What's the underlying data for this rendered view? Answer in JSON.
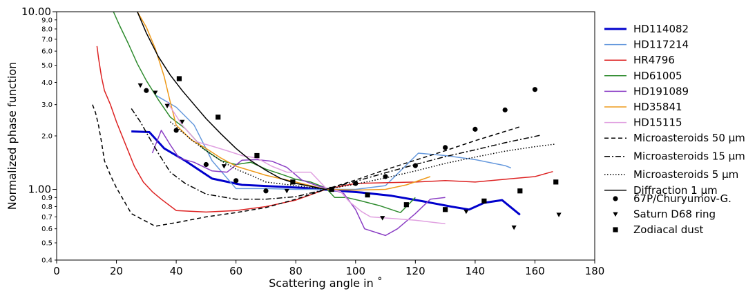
{
  "chart_data": {
    "type": "line",
    "title": "",
    "xlabel": "Scattering angle in  ˚",
    "ylabel": "Normalized phase function",
    "xlim": [
      0,
      180
    ],
    "ylim": [
      0.4,
      10.0
    ],
    "yscale": "log",
    "grid": false,
    "legend_position": "right, outside plot",
    "x_ticks": [
      "0",
      "20",
      "40",
      "60",
      "80",
      "100",
      "120",
      "140",
      "160",
      "180"
    ],
    "y_major_ticks": [
      "1.00",
      "10.00"
    ],
    "y_minor_ticks": [
      "0.4",
      "0.5",
      "0.6",
      "0.7",
      "0.8",
      "0.9",
      "2.0",
      "3.0",
      "4.0",
      "5.0",
      "6.0",
      "7.0",
      "8.0",
      "9.0"
    ],
    "series": [
      {
        "name": "HD114082",
        "color": "#0000cc",
        "style": "solid-thick",
        "x": [
          25,
          31,
          36,
          43,
          52,
          62,
          72,
          82,
          92,
          102,
          112,
          122,
          132,
          138,
          143,
          149,
          155
        ],
        "y": [
          2.12,
          2.1,
          1.7,
          1.45,
          1.15,
          1.06,
          1.04,
          1.02,
          0.99,
          0.96,
          0.92,
          0.86,
          0.8,
          0.77,
          0.84,
          0.87,
          0.72
        ]
      },
      {
        "name": "HD117214",
        "color": "#6699dd",
        "style": "solid",
        "x": [
          33,
          40,
          46,
          52,
          60,
          70,
          80,
          90,
          100,
          110,
          121,
          130,
          140,
          150,
          152
        ],
        "y": [
          3.4,
          2.9,
          2.3,
          1.45,
          1.01,
          1.01,
          1.0,
          1.0,
          1.0,
          1.05,
          1.6,
          1.55,
          1.47,
          1.36,
          1.32
        ]
      },
      {
        "name": "HR4796",
        "color": "#dd2222",
        "style": "solid",
        "x": [
          13.5,
          14,
          15,
          16,
          18,
          20,
          23,
          26,
          29,
          32,
          35,
          40,
          50,
          60,
          70,
          80,
          90,
          100,
          110,
          120,
          130,
          140,
          150,
          160,
          166
        ],
        "y": [
          6.4,
          5.5,
          4.3,
          3.6,
          3.0,
          2.4,
          1.8,
          1.35,
          1.1,
          0.97,
          0.88,
          0.76,
          0.745,
          0.76,
          0.8,
          0.87,
          1.0,
          1.08,
          1.09,
          1.1,
          1.12,
          1.1,
          1.14,
          1.18,
          1.26
        ]
      },
      {
        "name": "HD61005",
        "color": "#2e8b2e",
        "style": "solid",
        "x": [
          19,
          21,
          24,
          27,
          30,
          34,
          38,
          43,
          49,
          55,
          60,
          65,
          70,
          75,
          80,
          85,
          90,
          93,
          97,
          102,
          108,
          115,
          120
        ],
        "y": [
          10.0,
          8.4,
          6.6,
          5.1,
          4.1,
          3.2,
          2.55,
          2.2,
          1.7,
          1.45,
          1.38,
          1.42,
          1.3,
          1.22,
          1.14,
          1.1,
          1.02,
          0.9,
          0.9,
          0.86,
          0.81,
          0.74,
          0.9
        ]
      },
      {
        "name": "HD191089",
        "color": "#8a3dc4",
        "style": "solid",
        "x": [
          32,
          35,
          38,
          41,
          46,
          52,
          57,
          62,
          67,
          72,
          77,
          82,
          87,
          92,
          96,
          100,
          103,
          110,
          114,
          120,
          125,
          130
        ],
        "y": [
          1.6,
          2.15,
          1.78,
          1.5,
          1.42,
          1.27,
          1.25,
          1.46,
          1.47,
          1.44,
          1.33,
          1.13,
          1.05,
          1.0,
          0.95,
          0.77,
          0.6,
          0.55,
          0.6,
          0.73,
          0.88,
          0.9
        ]
      },
      {
        "name": "HD35841",
        "color": "#ee9a1a",
        "style": "solid",
        "x": [
          27,
          30,
          33,
          36,
          38,
          40,
          45,
          50,
          55,
          60,
          70,
          80,
          90,
          100,
          110,
          117,
          125
        ],
        "y": [
          10.0,
          8.2,
          6.2,
          4.3,
          3.1,
          2.3,
          1.9,
          1.7,
          1.5,
          1.35,
          1.2,
          1.1,
          1.0,
          0.99,
          1.0,
          1.06,
          1.18
        ]
      },
      {
        "name": "HD15115",
        "color": "#e0a0e0",
        "style": "solid",
        "x": [
          37,
          42,
          47,
          52,
          57,
          62,
          67,
          72,
          77,
          82,
          85,
          90,
          95,
          98,
          102,
          105,
          110,
          120,
          130
        ],
        "y": [
          3.1,
          2.3,
          1.85,
          1.75,
          1.65,
          1.55,
          1.5,
          1.35,
          1.25,
          1.25,
          1.25,
          1.02,
          0.97,
          0.85,
          0.75,
          0.7,
          0.69,
          0.67,
          0.64
        ]
      },
      {
        "name": "Microasteroids 50 μm",
        "color": "#000000",
        "style": "dashed",
        "x": [
          12,
          13,
          14,
          15,
          16,
          18,
          20,
          25,
          33,
          40,
          50,
          60,
          70,
          80,
          90,
          100,
          110,
          120,
          130,
          140,
          150,
          155
        ],
        "y": [
          3.0,
          2.7,
          2.3,
          1.85,
          1.45,
          1.2,
          1.02,
          0.73,
          0.62,
          0.65,
          0.7,
          0.74,
          0.79,
          0.88,
          1.0,
          1.13,
          1.29,
          1.46,
          1.65,
          1.88,
          2.12,
          2.25
        ]
      },
      {
        "name": "Microasteroids 15 μm",
        "color": "#000000",
        "style": "dashdot",
        "x": [
          25,
          28,
          31,
          34,
          38,
          43,
          50,
          55,
          60,
          70,
          80,
          90,
          100,
          110,
          120,
          130,
          140,
          150,
          162
        ],
        "y": [
          2.85,
          2.4,
          1.95,
          1.6,
          1.25,
          1.08,
          0.94,
          0.91,
          0.88,
          0.88,
          0.91,
          1.0,
          1.11,
          1.24,
          1.38,
          1.53,
          1.67,
          1.83,
          2.02
        ]
      },
      {
        "name": "Microasteroids 5 μm",
        "color": "#000000",
        "style": "dotted",
        "x": [
          38,
          42,
          46,
          50,
          55,
          60,
          65,
          70,
          80,
          90,
          100,
          110,
          120,
          130,
          140,
          150,
          160,
          167
        ],
        "y": [
          2.4,
          2.1,
          1.85,
          1.65,
          1.45,
          1.3,
          1.2,
          1.1,
          1.05,
          1.0,
          1.07,
          1.16,
          1.27,
          1.4,
          1.52,
          1.64,
          1.74,
          1.8
        ]
      },
      {
        "name": "Diffraction 1 μm",
        "color": "#000000",
        "style": "solid",
        "x": [
          27,
          30,
          34,
          38,
          42,
          46,
          50,
          55,
          60,
          65,
          70,
          75,
          80,
          85,
          90
        ],
        "y": [
          10.0,
          7.6,
          5.6,
          4.4,
          3.6,
          3.0,
          2.5,
          2.05,
          1.7,
          1.45,
          1.28,
          1.15,
          1.08,
          1.04,
          1.0
        ]
      }
    ],
    "scatter_series": [
      {
        "name": "67P/Churyumov-G.",
        "marker": "circle",
        "color": "#000000",
        "x": [
          30,
          40,
          50,
          60,
          70,
          92,
          100,
          110,
          120,
          130,
          140,
          150,
          160
        ],
        "y": [
          3.6,
          2.15,
          1.38,
          1.12,
          0.98,
          1.0,
          1.08,
          1.18,
          1.36,
          1.72,
          2.18,
          2.8,
          3.65
        ]
      },
      {
        "name": "Saturn D68 ring",
        "marker": "triangle-down",
        "color": "#000000",
        "x": [
          28,
          33,
          37,
          42,
          56,
          77,
          109,
          137,
          153,
          168
        ],
        "y": [
          3.85,
          3.5,
          2.95,
          2.4,
          1.35,
          0.98,
          0.69,
          0.75,
          0.61,
          0.72
        ]
      },
      {
        "name": "Zodiacal dust",
        "marker": "square",
        "color": "#000000",
        "x": [
          41,
          54,
          67,
          79,
          92,
          104,
          117,
          130,
          143,
          155,
          167
        ],
        "y": [
          4.2,
          2.55,
          1.55,
          1.1,
          1.0,
          0.93,
          0.82,
          0.77,
          0.86,
          0.98,
          1.1
        ]
      }
    ]
  }
}
